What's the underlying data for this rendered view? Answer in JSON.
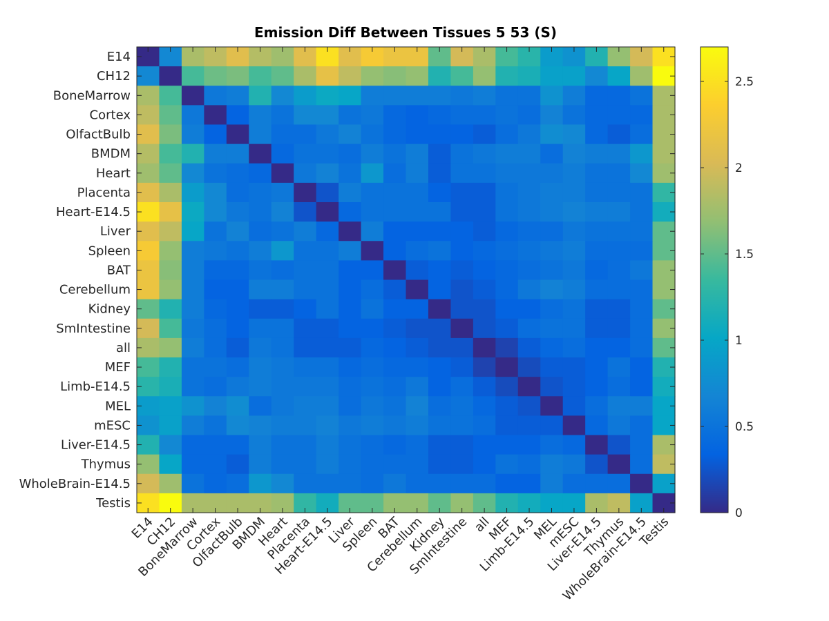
{
  "chart_data": {
    "type": "heatmap",
    "title": "Emission Diff Between Tissues 5 53 (S)",
    "xlabel": "",
    "ylabel": "",
    "colormap": "parula",
    "clim": [
      0,
      2.7
    ],
    "colorbar": {
      "ticks": [
        0,
        0.5,
        1,
        1.5,
        2,
        2.5
      ],
      "tick_labels": [
        "0",
        "0.5",
        "1",
        "1.5",
        "2",
        "2.5"
      ]
    },
    "categories": [
      "E14",
      "CH12",
      "BoneMarrow",
      "Cortex",
      "OlfactBulb",
      "BMDM",
      "Heart",
      "Placenta",
      "Heart-E14.5",
      "Liver",
      "Spleen",
      "BAT",
      "Cerebellum",
      "Kidney",
      "SmIntestine",
      "all",
      "MEF",
      "Limb-E14.5",
      "MEL",
      "mESC",
      "Liver-E14.5",
      "Thymus",
      "WholeBrain-E14.5",
      "Testis"
    ],
    "values": [
      [
        0.0,
        0.7,
        1.8,
        1.9,
        2.1,
        1.85,
        1.75,
        2.1,
        2.5,
        2.1,
        2.3,
        2.2,
        2.2,
        1.5,
        2.0,
        1.8,
        1.4,
        1.25,
        0.9,
        0.8,
        1.2,
        1.7,
        2.0,
        2.5
      ],
      [
        0.7,
        0.0,
        1.4,
        1.55,
        1.6,
        1.4,
        1.5,
        1.8,
        2.15,
        1.9,
        1.7,
        1.65,
        1.7,
        1.2,
        1.4,
        1.7,
        1.2,
        1.15,
        0.95,
        0.95,
        0.7,
        1.0,
        1.75,
        2.7
      ],
      [
        1.8,
        1.4,
        0.0,
        0.55,
        0.6,
        1.2,
        0.7,
        0.9,
        1.05,
        1.0,
        0.6,
        0.6,
        0.6,
        0.6,
        0.55,
        0.6,
        0.5,
        0.5,
        0.8,
        0.6,
        0.4,
        0.4,
        0.5,
        1.8
      ],
      [
        1.9,
        1.5,
        0.55,
        0.0,
        0.35,
        0.6,
        0.5,
        0.7,
        0.7,
        0.5,
        0.55,
        0.4,
        0.35,
        0.4,
        0.45,
        0.45,
        0.5,
        0.45,
        0.65,
        0.5,
        0.4,
        0.4,
        0.4,
        1.8
      ],
      [
        2.1,
        1.6,
        0.6,
        0.35,
        0.0,
        0.6,
        0.45,
        0.45,
        0.55,
        0.65,
        0.5,
        0.4,
        0.35,
        0.35,
        0.35,
        0.3,
        0.45,
        0.55,
        0.75,
        0.7,
        0.4,
        0.3,
        0.45,
        1.8
      ],
      [
        1.85,
        1.4,
        1.2,
        0.6,
        0.6,
        0.0,
        0.4,
        0.5,
        0.5,
        0.45,
        0.6,
        0.5,
        0.6,
        0.3,
        0.5,
        0.55,
        0.6,
        0.6,
        0.45,
        0.65,
        0.6,
        0.6,
        0.85,
        1.8
      ],
      [
        1.75,
        1.5,
        0.7,
        0.5,
        0.45,
        0.4,
        0.0,
        0.55,
        0.65,
        0.5,
        0.85,
        0.45,
        0.6,
        0.3,
        0.5,
        0.5,
        0.55,
        0.55,
        0.55,
        0.6,
        0.5,
        0.5,
        0.7,
        1.75
      ],
      [
        2.1,
        1.8,
        0.9,
        0.7,
        0.45,
        0.5,
        0.55,
        0.0,
        0.25,
        0.6,
        0.5,
        0.5,
        0.5,
        0.35,
        0.3,
        0.3,
        0.5,
        0.55,
        0.6,
        0.6,
        0.5,
        0.5,
        0.5,
        1.3
      ],
      [
        2.5,
        2.15,
        1.05,
        0.7,
        0.55,
        0.5,
        0.65,
        0.25,
        0.0,
        0.4,
        0.5,
        0.5,
        0.5,
        0.5,
        0.3,
        0.3,
        0.5,
        0.55,
        0.6,
        0.65,
        0.6,
        0.6,
        0.5,
        1.1
      ],
      [
        2.1,
        1.9,
        1.0,
        0.5,
        0.65,
        0.45,
        0.5,
        0.6,
        0.4,
        0.0,
        0.6,
        0.35,
        0.35,
        0.35,
        0.35,
        0.3,
        0.4,
        0.45,
        0.45,
        0.55,
        0.5,
        0.5,
        0.5,
        1.5
      ],
      [
        2.3,
        1.7,
        0.6,
        0.55,
        0.5,
        0.6,
        0.85,
        0.5,
        0.5,
        0.6,
        0.0,
        0.35,
        0.45,
        0.5,
        0.35,
        0.4,
        0.45,
        0.5,
        0.55,
        0.6,
        0.45,
        0.45,
        0.45,
        1.5
      ],
      [
        2.2,
        1.65,
        0.6,
        0.4,
        0.4,
        0.5,
        0.45,
        0.5,
        0.5,
        0.35,
        0.35,
        0.0,
        0.3,
        0.35,
        0.3,
        0.35,
        0.4,
        0.45,
        0.5,
        0.55,
        0.4,
        0.45,
        0.55,
        1.7
      ],
      [
        2.2,
        1.7,
        0.6,
        0.35,
        0.35,
        0.6,
        0.6,
        0.5,
        0.5,
        0.35,
        0.45,
        0.3,
        0.0,
        0.35,
        0.25,
        0.3,
        0.4,
        0.55,
        0.65,
        0.6,
        0.45,
        0.45,
        0.45,
        1.7
      ],
      [
        1.5,
        1.2,
        0.6,
        0.4,
        0.35,
        0.3,
        0.3,
        0.35,
        0.5,
        0.35,
        0.5,
        0.35,
        0.35,
        0.0,
        0.25,
        0.25,
        0.35,
        0.35,
        0.45,
        0.5,
        0.3,
        0.3,
        0.45,
        1.5
      ],
      [
        2.0,
        1.4,
        0.55,
        0.45,
        0.35,
        0.5,
        0.5,
        0.3,
        0.3,
        0.35,
        0.35,
        0.3,
        0.25,
        0.25,
        0.0,
        0.25,
        0.3,
        0.45,
        0.5,
        0.5,
        0.3,
        0.3,
        0.45,
        1.7
      ],
      [
        1.8,
        1.7,
        0.6,
        0.45,
        0.3,
        0.55,
        0.5,
        0.3,
        0.3,
        0.3,
        0.4,
        0.35,
        0.3,
        0.25,
        0.25,
        0.0,
        0.15,
        0.3,
        0.4,
        0.45,
        0.35,
        0.35,
        0.45,
        1.5
      ],
      [
        1.4,
        1.2,
        0.5,
        0.5,
        0.45,
        0.6,
        0.55,
        0.5,
        0.5,
        0.4,
        0.45,
        0.4,
        0.4,
        0.35,
        0.3,
        0.15,
        0.0,
        0.2,
        0.3,
        0.3,
        0.35,
        0.5,
        0.35,
        1.2
      ],
      [
        1.25,
        1.15,
        0.5,
        0.45,
        0.55,
        0.6,
        0.55,
        0.55,
        0.55,
        0.45,
        0.5,
        0.45,
        0.55,
        0.35,
        0.45,
        0.3,
        0.2,
        0.0,
        0.25,
        0.3,
        0.35,
        0.45,
        0.35,
        1.1
      ],
      [
        0.9,
        0.95,
        0.8,
        0.65,
        0.75,
        0.45,
        0.55,
        0.6,
        0.6,
        0.45,
        0.55,
        0.5,
        0.65,
        0.45,
        0.5,
        0.4,
        0.3,
        0.25,
        0.0,
        0.3,
        0.45,
        0.6,
        0.6,
        1.0
      ],
      [
        0.8,
        0.95,
        0.6,
        0.5,
        0.7,
        0.65,
        0.6,
        0.6,
        0.65,
        0.55,
        0.6,
        0.55,
        0.6,
        0.5,
        0.5,
        0.45,
        0.3,
        0.3,
        0.3,
        0.0,
        0.4,
        0.55,
        0.45,
        1.0
      ],
      [
        1.2,
        0.7,
        0.4,
        0.4,
        0.4,
        0.6,
        0.5,
        0.5,
        0.6,
        0.5,
        0.45,
        0.4,
        0.45,
        0.3,
        0.3,
        0.35,
        0.35,
        0.35,
        0.45,
        0.4,
        0.0,
        0.25,
        0.45,
        1.8
      ],
      [
        1.7,
        1.0,
        0.4,
        0.4,
        0.3,
        0.6,
        0.5,
        0.5,
        0.6,
        0.5,
        0.45,
        0.45,
        0.45,
        0.3,
        0.3,
        0.35,
        0.5,
        0.45,
        0.6,
        0.55,
        0.25,
        0.0,
        0.45,
        1.9
      ],
      [
        2.0,
        1.75,
        0.5,
        0.4,
        0.45,
        0.85,
        0.7,
        0.5,
        0.5,
        0.5,
        0.45,
        0.55,
        0.45,
        0.45,
        0.45,
        0.45,
        0.35,
        0.35,
        0.6,
        0.45,
        0.45,
        0.45,
        0.0,
        0.95
      ],
      [
        2.5,
        2.7,
        1.8,
        1.8,
        1.8,
        1.8,
        1.75,
        1.3,
        1.1,
        1.5,
        1.5,
        1.7,
        1.7,
        1.5,
        1.7,
        1.5,
        1.2,
        1.1,
        1.0,
        1.0,
        1.8,
        1.9,
        0.95,
        0.0
      ]
    ]
  }
}
